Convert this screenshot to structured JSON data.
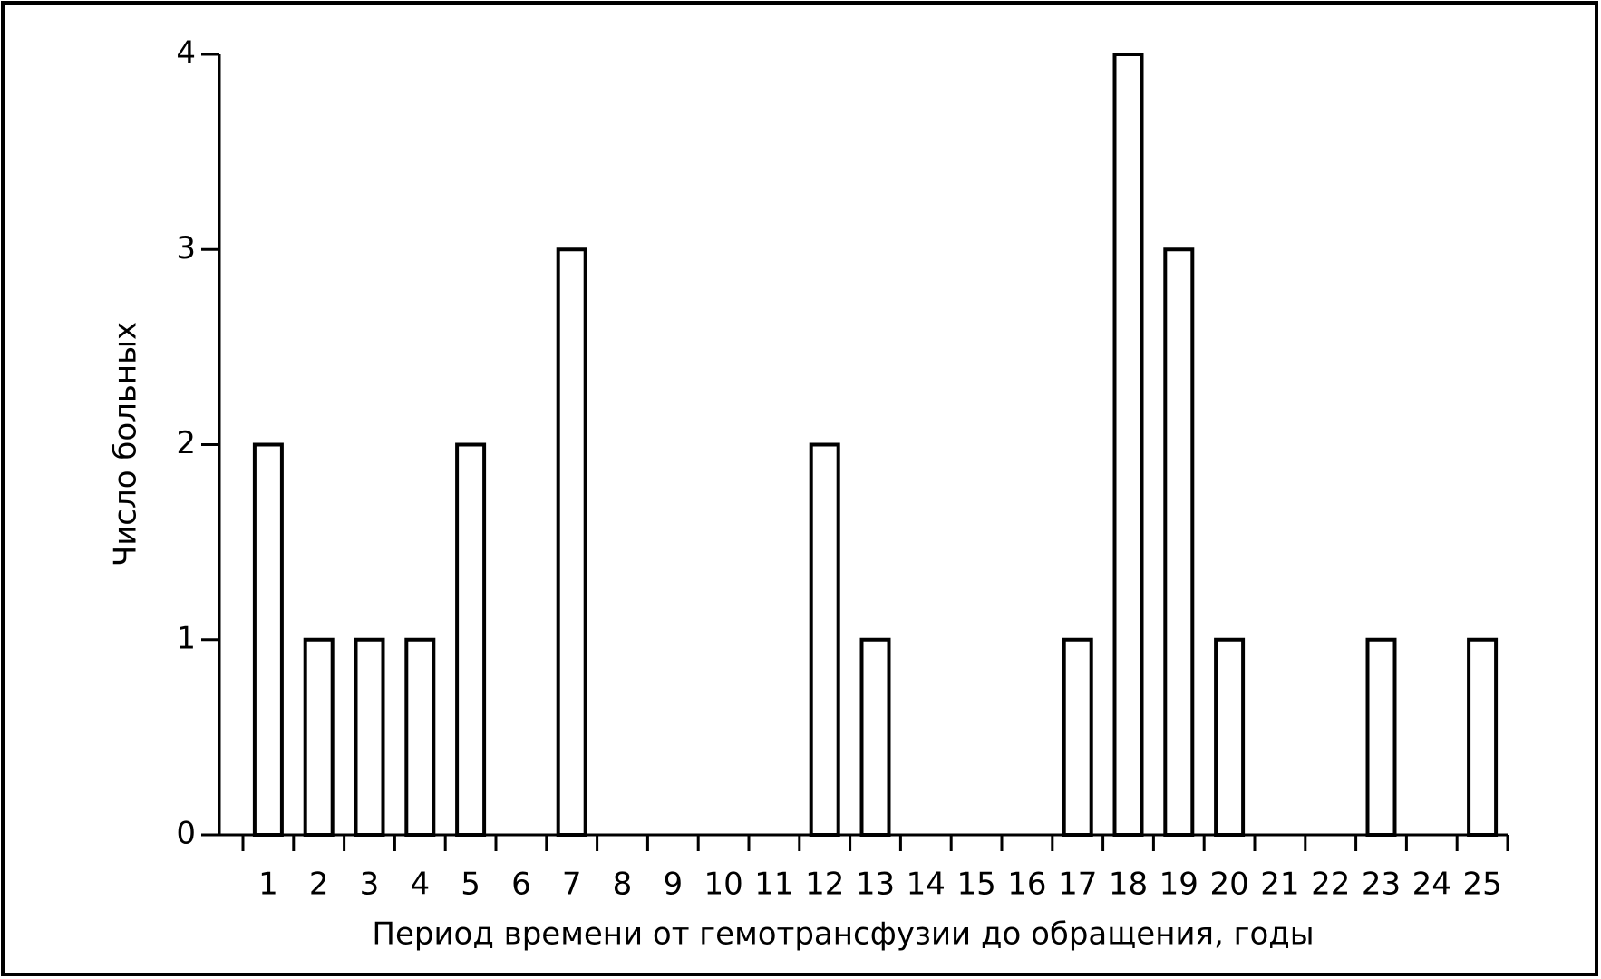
{
  "chart_data": {
    "type": "bar",
    "x_label": "Период времени от гемотрансфузии до обращения, годы",
    "y_label": "Число больных",
    "categories": [
      "1",
      "2",
      "3",
      "4",
      "5",
      "6",
      "7",
      "8",
      "9",
      "10",
      "11",
      "12",
      "13",
      "14",
      "15",
      "16",
      "17",
      "18",
      "19",
      "20",
      "21",
      "22",
      "23",
      "24",
      "25"
    ],
    "values": [
      2,
      1,
      1,
      1,
      2,
      0,
      3,
      0,
      0,
      0,
      0,
      2,
      1,
      0,
      0,
      0,
      1,
      4,
      3,
      1,
      0,
      0,
      1,
      0,
      1
    ],
    "color": "#ffffff",
    "ylim": [
      0,
      4
    ],
    "yticks": [
      0,
      1,
      2,
      3,
      4
    ],
    "grid": false
  }
}
